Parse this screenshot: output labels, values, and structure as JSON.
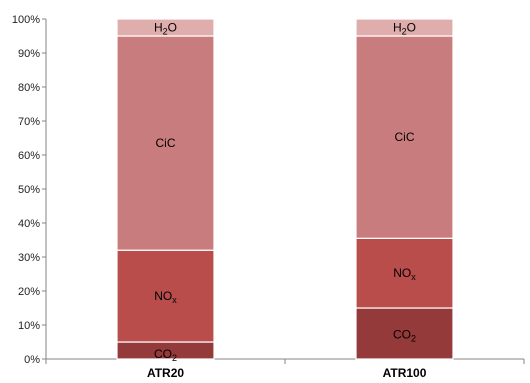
{
  "chart_data": {
    "type": "bar",
    "stacked": true,
    "categories": [
      "ATR20",
      "ATR100"
    ],
    "y_ticks": [
      "0%",
      "10%",
      "20%",
      "30%",
      "40%",
      "50%",
      "60%",
      "70%",
      "80%",
      "90%",
      "100%"
    ],
    "ylim": [
      0,
      100
    ],
    "grid": false,
    "series": [
      {
        "key": "co2",
        "label_base": "CO",
        "label_sub": "2",
        "values": [
          5,
          15
        ],
        "color": "#953a3a"
      },
      {
        "key": "nox",
        "label_base": "NO",
        "label_sub": "x",
        "values": [
          27,
          20.5
        ],
        "color": "#b84d4c"
      },
      {
        "key": "cic",
        "label_base": "CiC",
        "label_sub": "",
        "values": [
          63,
          59.5
        ],
        "color": "#c97c7d"
      },
      {
        "key": "h2o",
        "label_base": "H",
        "label_sub": "2",
        "label_tail": "O",
        "values": [
          5,
          5
        ],
        "color": "#dfadac"
      }
    ]
  }
}
